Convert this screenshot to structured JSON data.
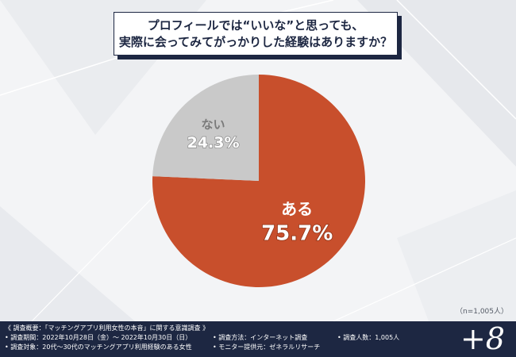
{
  "title_lines": [
    "プロフィールでは“いいな”と思っても、",
    "実際に会ってみてがっかりした経験はありますか？"
  ],
  "chart_data": {
    "type": "pie",
    "slices": [
      {
        "label": "ある",
        "value": 75.7,
        "value_label": "75.7%",
        "color": "#c84f2c"
      },
      {
        "label": "ない",
        "value": 24.3,
        "value_label": "24.3%",
        "color": "#c9c9c9"
      }
    ]
  },
  "sample_size": "（n=1,005人）",
  "footer": {
    "summary": "《 調査概要：「マッチングアプリ利用女性の本音」に関する意識調査 》",
    "period": "• 調査期間：2022年10月28日（金）～ 2022年10月30日（日）",
    "target": "• 調査対象：20代～30代のマッチングアプリ利用経験のある女性",
    "method": "• 調査方法：インターネット調査",
    "provider": "• モニター提供元：ゼネラルリサーチ",
    "count": "• 調査人数：1,005人",
    "logo": "+8"
  }
}
